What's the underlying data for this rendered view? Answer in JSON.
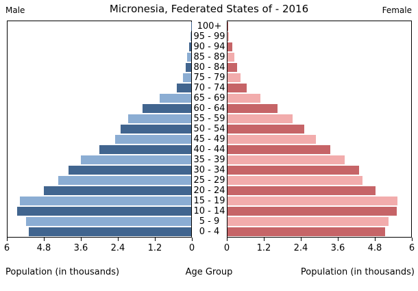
{
  "header": {
    "male_label": "Male",
    "title": "Micronesia, Federated States of - 2016",
    "female_label": "Female"
  },
  "footer": {
    "left_axis_label": "Population (in thousands)",
    "center_label": "Age Group",
    "right_axis_label": "Population (in thousands)"
  },
  "colors": {
    "male_dark": "#41658f",
    "male_light": "#8badd3",
    "female_dark": "#c66467",
    "female_light": "#f2acac",
    "axis": "#000000",
    "background": "#ffffff"
  },
  "chart_data": {
    "type": "bar",
    "subtype": "population-pyramid",
    "title": "Micronesia, Federated States of - 2016",
    "orientation": "horizontal",
    "categories_order": "top-to-bottom",
    "categories": [
      "100+",
      "95 - 99",
      "90 - 94",
      "85 - 89",
      "80 - 84",
      "75 - 79",
      "70 - 74",
      "65 - 69",
      "60 - 64",
      "55 - 59",
      "50 - 54",
      "45 - 49",
      "40 - 44",
      "35 - 39",
      "30 - 34",
      "25 - 29",
      "20 - 24",
      "15 - 19",
      "10 - 14",
      "5 - 9",
      "0 - 4"
    ],
    "series": [
      {
        "name": "Male",
        "side": "left",
        "values": [
          0.01,
          0.03,
          0.06,
          0.13,
          0.19,
          0.27,
          0.48,
          1.02,
          1.58,
          2.05,
          2.31,
          2.49,
          2.99,
          3.61,
          4.01,
          4.35,
          4.82,
          5.6,
          5.69,
          5.4,
          5.31
        ]
      },
      {
        "name": "Female",
        "side": "right",
        "values": [
          0.03,
          0.05,
          0.16,
          0.22,
          0.31,
          0.42,
          0.62,
          1.07,
          1.64,
          2.13,
          2.5,
          2.89,
          3.35,
          3.83,
          4.3,
          4.42,
          4.84,
          5.55,
          5.52,
          5.27,
          5.15
        ]
      }
    ],
    "xlabel": "Population (in thousands)",
    "center_axis_label": "Age Group",
    "xlim": [
      0,
      6
    ],
    "xticks": [
      0,
      1.2,
      2.4,
      3.6,
      4.8,
      6
    ],
    "grid": false,
    "legend_position": "none",
    "bar_color_pattern": "alternating dark/light per row, dark on even rows counting 0-4 as dark"
  }
}
